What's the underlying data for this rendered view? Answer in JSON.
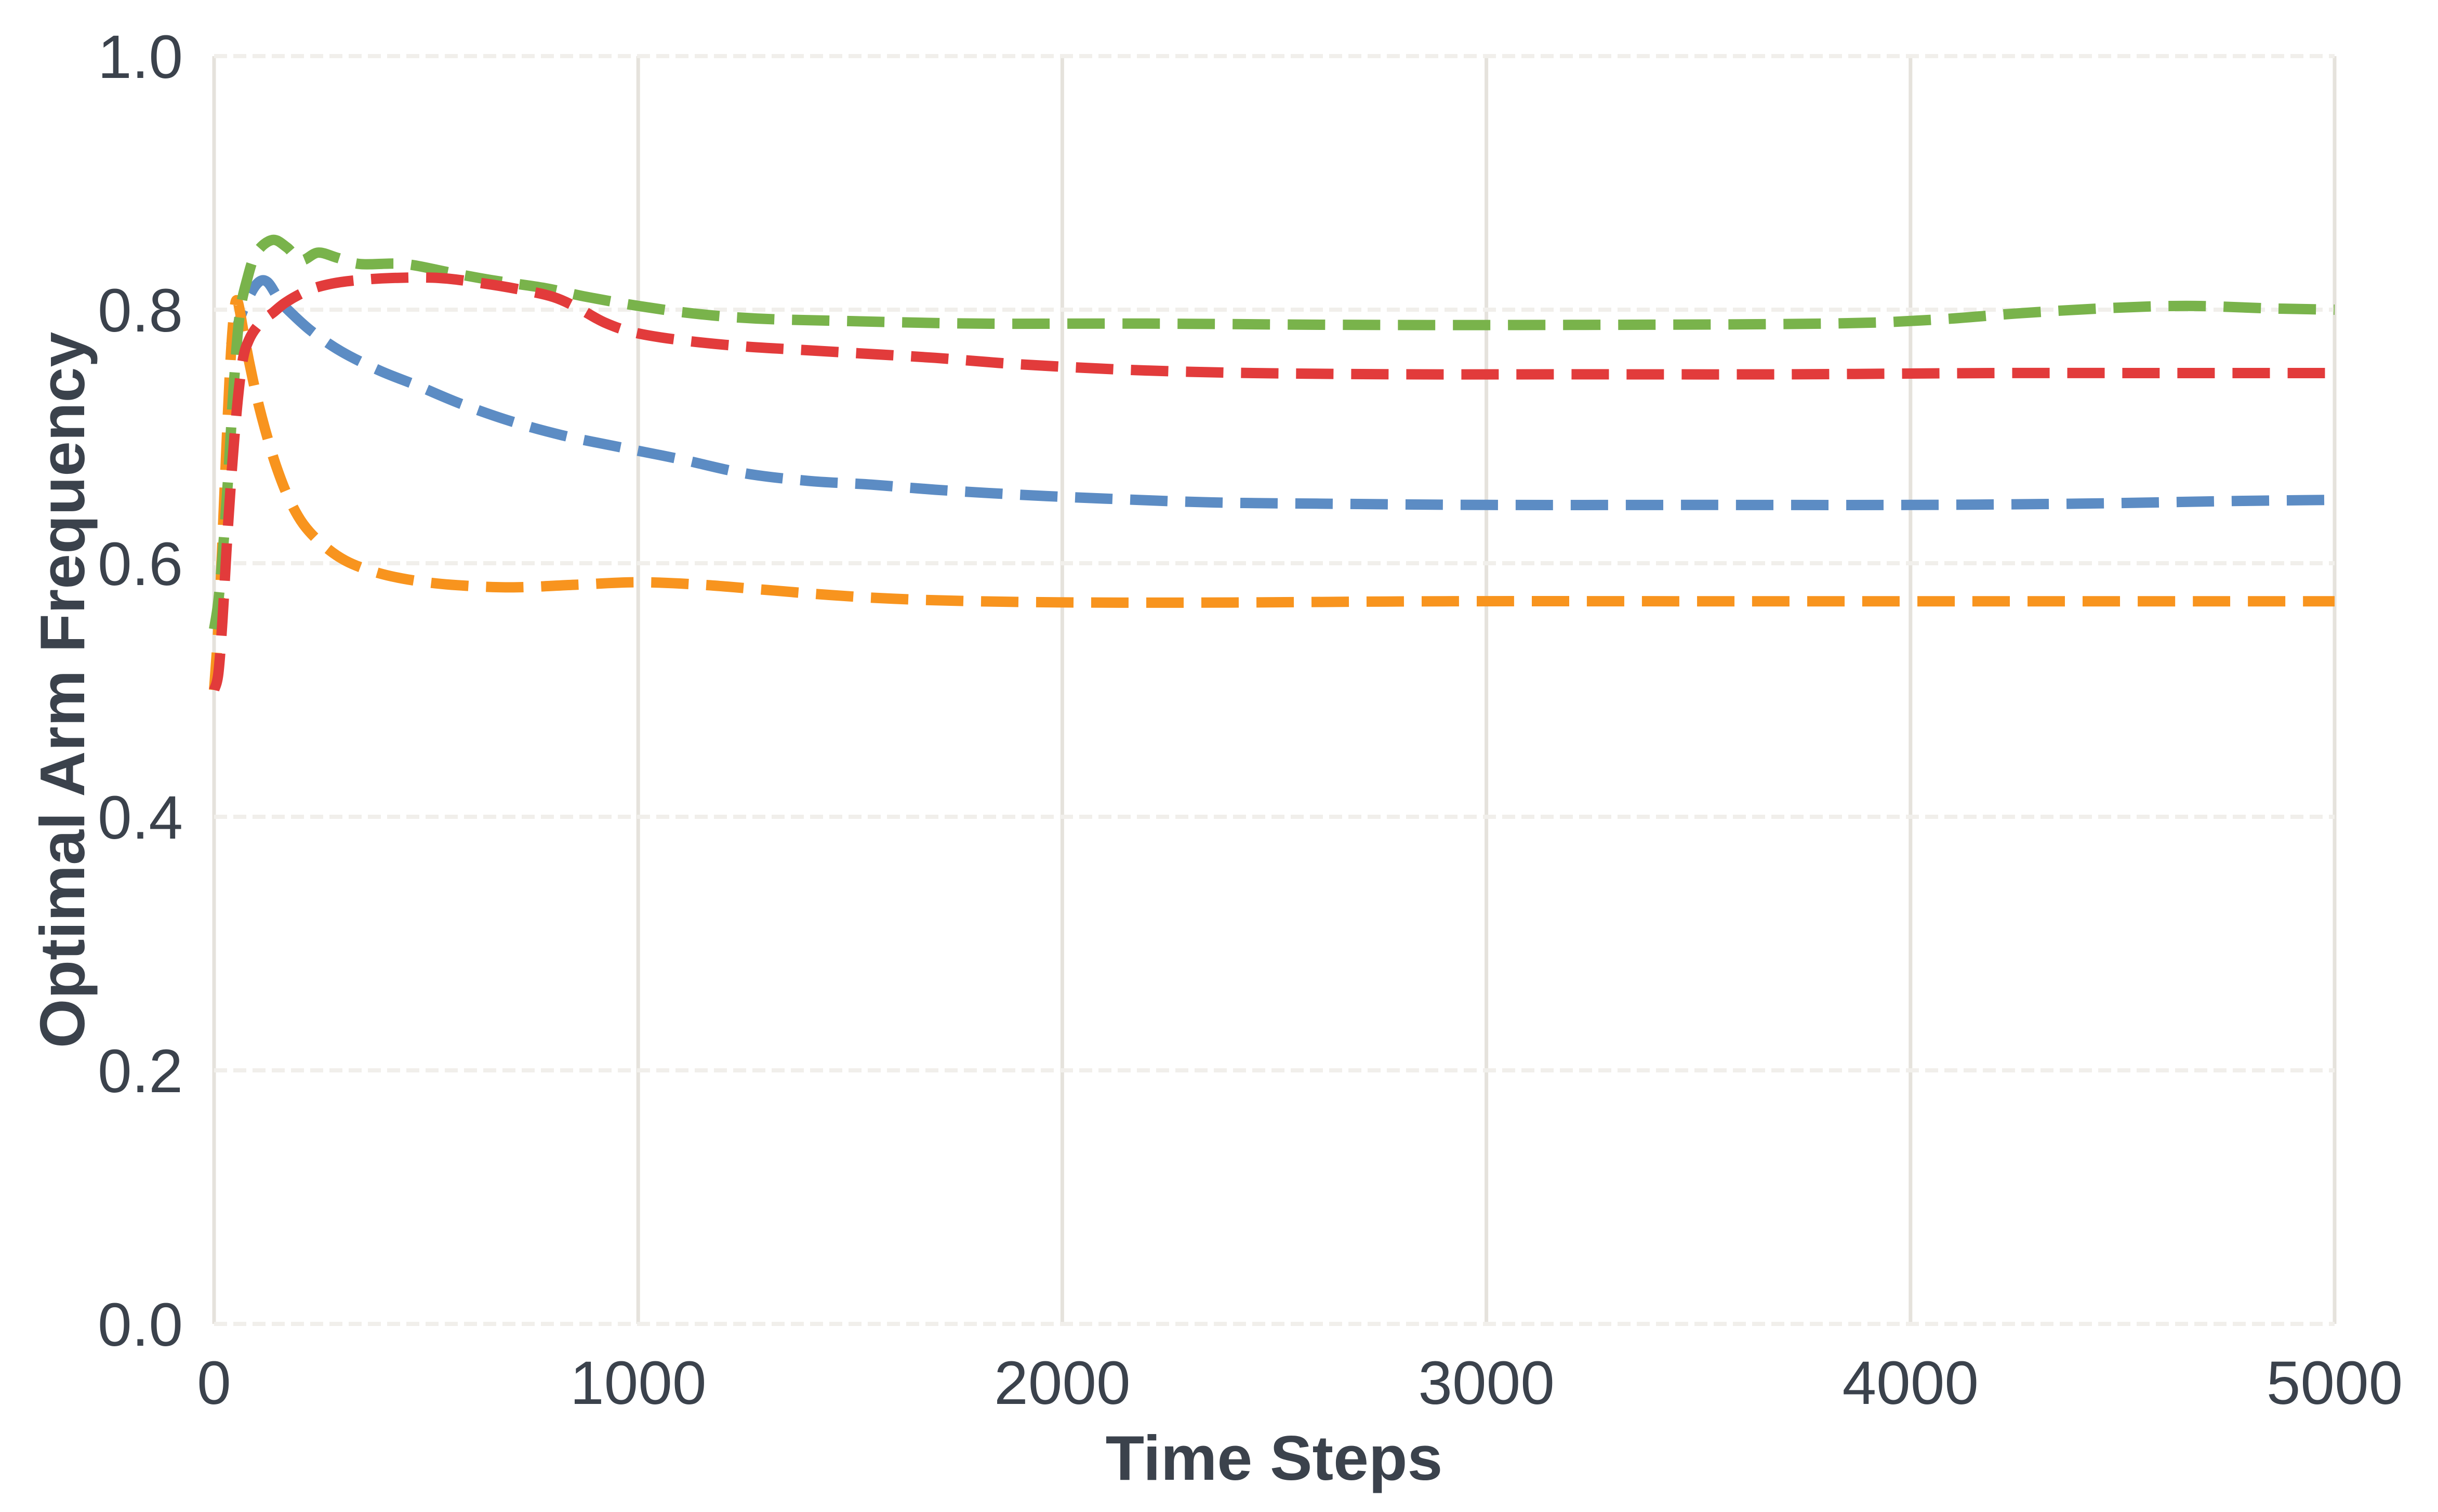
{
  "figure": {
    "background": "#ffffff"
  },
  "palette": {
    "text": "#3B424C",
    "grid_vertical": "#E5E2DC",
    "grid_horizontal": "#F1EFEB",
    "series_blue": "#5C8CC4",
    "series_orange": "#F8941E",
    "series_green": "#79B34B",
    "series_red": "#E23B3B"
  },
  "chart_data": {
    "type": "line",
    "title": "",
    "xlabel": "Time Steps",
    "ylabel": "Optimal Arm Frequency",
    "xlim": [
      0,
      5000
    ],
    "ylim": [
      0.0,
      1.0
    ],
    "x_ticks": [
      0,
      1000,
      2000,
      3000,
      4000,
      5000
    ],
    "x_tick_labels": [
      "0",
      "1000",
      "2000",
      "3000",
      "4000",
      "5000"
    ],
    "y_ticks": [
      0.0,
      0.2,
      0.4,
      0.6,
      0.8,
      1.0
    ],
    "y_tick_labels": [
      "0.0",
      "0.2",
      "0.4",
      "0.6",
      "0.8",
      "1.0"
    ],
    "grid": {
      "vertical": "solid",
      "horizontal": "dashed"
    },
    "legend": "none",
    "line_style": {
      "width": 20,
      "dash": [
        72,
        34
      ]
    },
    "series": [
      {
        "name": "blue",
        "color_key": "series_blue",
        "points": [
          [
            40,
            0.772
          ],
          [
            70,
            0.801
          ],
          [
            100,
            0.82
          ],
          [
            125,
            0.822
          ],
          [
            155,
            0.807
          ],
          [
            180,
            0.798
          ],
          [
            230,
            0.783
          ],
          [
            300,
            0.767
          ],
          [
            390,
            0.752
          ],
          [
            480,
            0.74
          ],
          [
            580,
            0.726
          ],
          [
            700,
            0.712
          ],
          [
            820,
            0.701
          ],
          [
            950,
            0.692
          ],
          [
            1100,
            0.682
          ],
          [
            1250,
            0.671
          ],
          [
            1400,
            0.665
          ],
          [
            1550,
            0.662
          ],
          [
            1700,
            0.658
          ],
          [
            1900,
            0.654
          ],
          [
            2100,
            0.651
          ],
          [
            2350,
            0.648
          ],
          [
            2600,
            0.647
          ],
          [
            3000,
            0.646
          ],
          [
            3500,
            0.646
          ],
          [
            4000,
            0.646
          ],
          [
            4400,
            0.647
          ],
          [
            4750,
            0.649
          ],
          [
            5000,
            0.65
          ]
        ]
      },
      {
        "name": "orange",
        "color_key": "series_orange",
        "points": [
          [
            0,
            0.5
          ],
          [
            12,
            0.56
          ],
          [
            25,
            0.66
          ],
          [
            38,
            0.755
          ],
          [
            48,
            0.8
          ],
          [
            56,
            0.806
          ],
          [
            68,
            0.785
          ],
          [
            82,
            0.76
          ],
          [
            100,
            0.732
          ],
          [
            120,
            0.706
          ],
          [
            145,
            0.678
          ],
          [
            175,
            0.652
          ],
          [
            210,
            0.631
          ],
          [
            255,
            0.615
          ],
          [
            310,
            0.602
          ],
          [
            380,
            0.593
          ],
          [
            460,
            0.587
          ],
          [
            560,
            0.583
          ],
          [
            700,
            0.581
          ],
          [
            850,
            0.583
          ],
          [
            1000,
            0.585
          ],
          [
            1150,
            0.583
          ],
          [
            1300,
            0.579
          ],
          [
            1450,
            0.575
          ],
          [
            1600,
            0.572
          ],
          [
            1800,
            0.57
          ],
          [
            2050,
            0.569
          ],
          [
            2400,
            0.569
          ],
          [
            2900,
            0.57
          ],
          [
            3500,
            0.57
          ],
          [
            4200,
            0.57
          ],
          [
            5000,
            0.57
          ]
        ]
      },
      {
        "name": "green",
        "color_key": "series_green",
        "points": [
          [
            0,
            0.548
          ],
          [
            10,
            0.57
          ],
          [
            22,
            0.615
          ],
          [
            34,
            0.672
          ],
          [
            46,
            0.738
          ],
          [
            60,
            0.795
          ],
          [
            78,
            0.824
          ],
          [
            100,
            0.845
          ],
          [
            138,
            0.855
          ],
          [
            172,
            0.849
          ],
          [
            205,
            0.839
          ],
          [
            245,
            0.845
          ],
          [
            290,
            0.841
          ],
          [
            345,
            0.836
          ],
          [
            450,
            0.836
          ],
          [
            560,
            0.829
          ],
          [
            660,
            0.823
          ],
          [
            780,
            0.817
          ],
          [
            880,
            0.81
          ],
          [
            1000,
            0.803
          ],
          [
            1130,
            0.797
          ],
          [
            1280,
            0.793
          ],
          [
            1500,
            0.791
          ],
          [
            1800,
            0.789
          ],
          [
            2200,
            0.789
          ],
          [
            2700,
            0.788
          ],
          [
            3200,
            0.788
          ],
          [
            3800,
            0.789
          ],
          [
            4050,
            0.792
          ],
          [
            4250,
            0.797
          ],
          [
            4450,
            0.801
          ],
          [
            4650,
            0.803
          ],
          [
            4850,
            0.801
          ],
          [
            5000,
            0.8
          ]
        ]
      },
      {
        "name": "red",
        "color_key": "series_red",
        "points": [
          [
            0,
            0.5
          ],
          [
            10,
            0.513
          ],
          [
            20,
            0.556
          ],
          [
            32,
            0.625
          ],
          [
            48,
            0.7
          ],
          [
            65,
            0.755
          ],
          [
            82,
            0.776
          ],
          [
            110,
            0.79
          ],
          [
            140,
            0.798
          ],
          [
            170,
            0.806
          ],
          [
            220,
            0.815
          ],
          [
            270,
            0.82
          ],
          [
            330,
            0.823
          ],
          [
            420,
            0.825
          ],
          [
            530,
            0.825
          ],
          [
            630,
            0.821
          ],
          [
            720,
            0.816
          ],
          [
            800,
            0.81
          ],
          [
            860,
            0.801
          ],
          [
            920,
            0.79
          ],
          [
            990,
            0.782
          ],
          [
            1100,
            0.776
          ],
          [
            1250,
            0.771
          ],
          [
            1400,
            0.768
          ],
          [
            1550,
            0.765
          ],
          [
            1700,
            0.762
          ],
          [
            1850,
            0.758
          ],
          [
            2000,
            0.755
          ],
          [
            2200,
            0.752
          ],
          [
            2450,
            0.75
          ],
          [
            2800,
            0.749
          ],
          [
            3200,
            0.749
          ],
          [
            3700,
            0.749
          ],
          [
            4200,
            0.75
          ],
          [
            4600,
            0.75
          ],
          [
            5000,
            0.75
          ]
        ]
      }
    ]
  }
}
